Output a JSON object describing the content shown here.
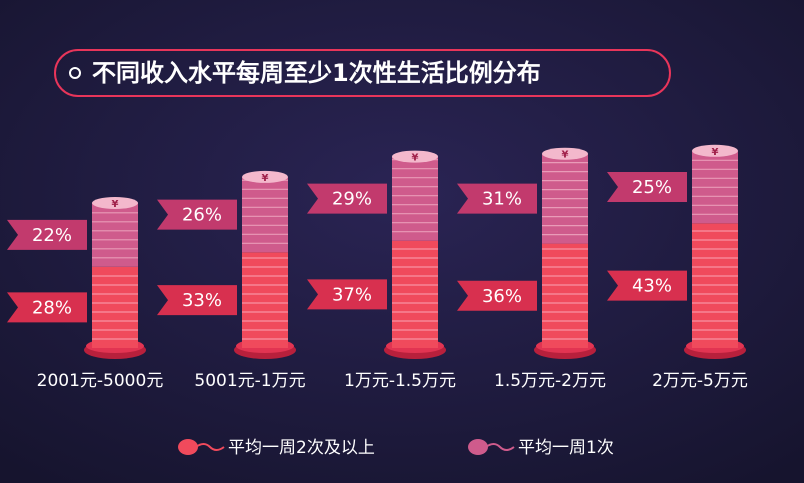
{
  "chart_data": {
    "type": "stacked_coin_bar",
    "title": "不同收入水平每周至少1次性生活比例分布",
    "categories": [
      "2001元-5000元",
      "5001元-1万元",
      "1万元-1.5万元",
      "1.5万元-2万元",
      "2万元-5万元"
    ],
    "series": [
      {
        "name": "平均一周2次及以上",
        "color": "#f04a5c",
        "values": [
          28,
          33,
          37,
          36,
          43
        ],
        "value_labels": [
          "28%",
          "33%",
          "37%",
          "36%",
          "43%"
        ]
      },
      {
        "name": "平均一周1次",
        "color": "#cf5b8c",
        "values": [
          22,
          26,
          29,
          31,
          25
        ],
        "value_labels": [
          "22%",
          "26%",
          "29%",
          "31%",
          "25%"
        ]
      }
    ],
    "currency_symbol": "¥"
  }
}
